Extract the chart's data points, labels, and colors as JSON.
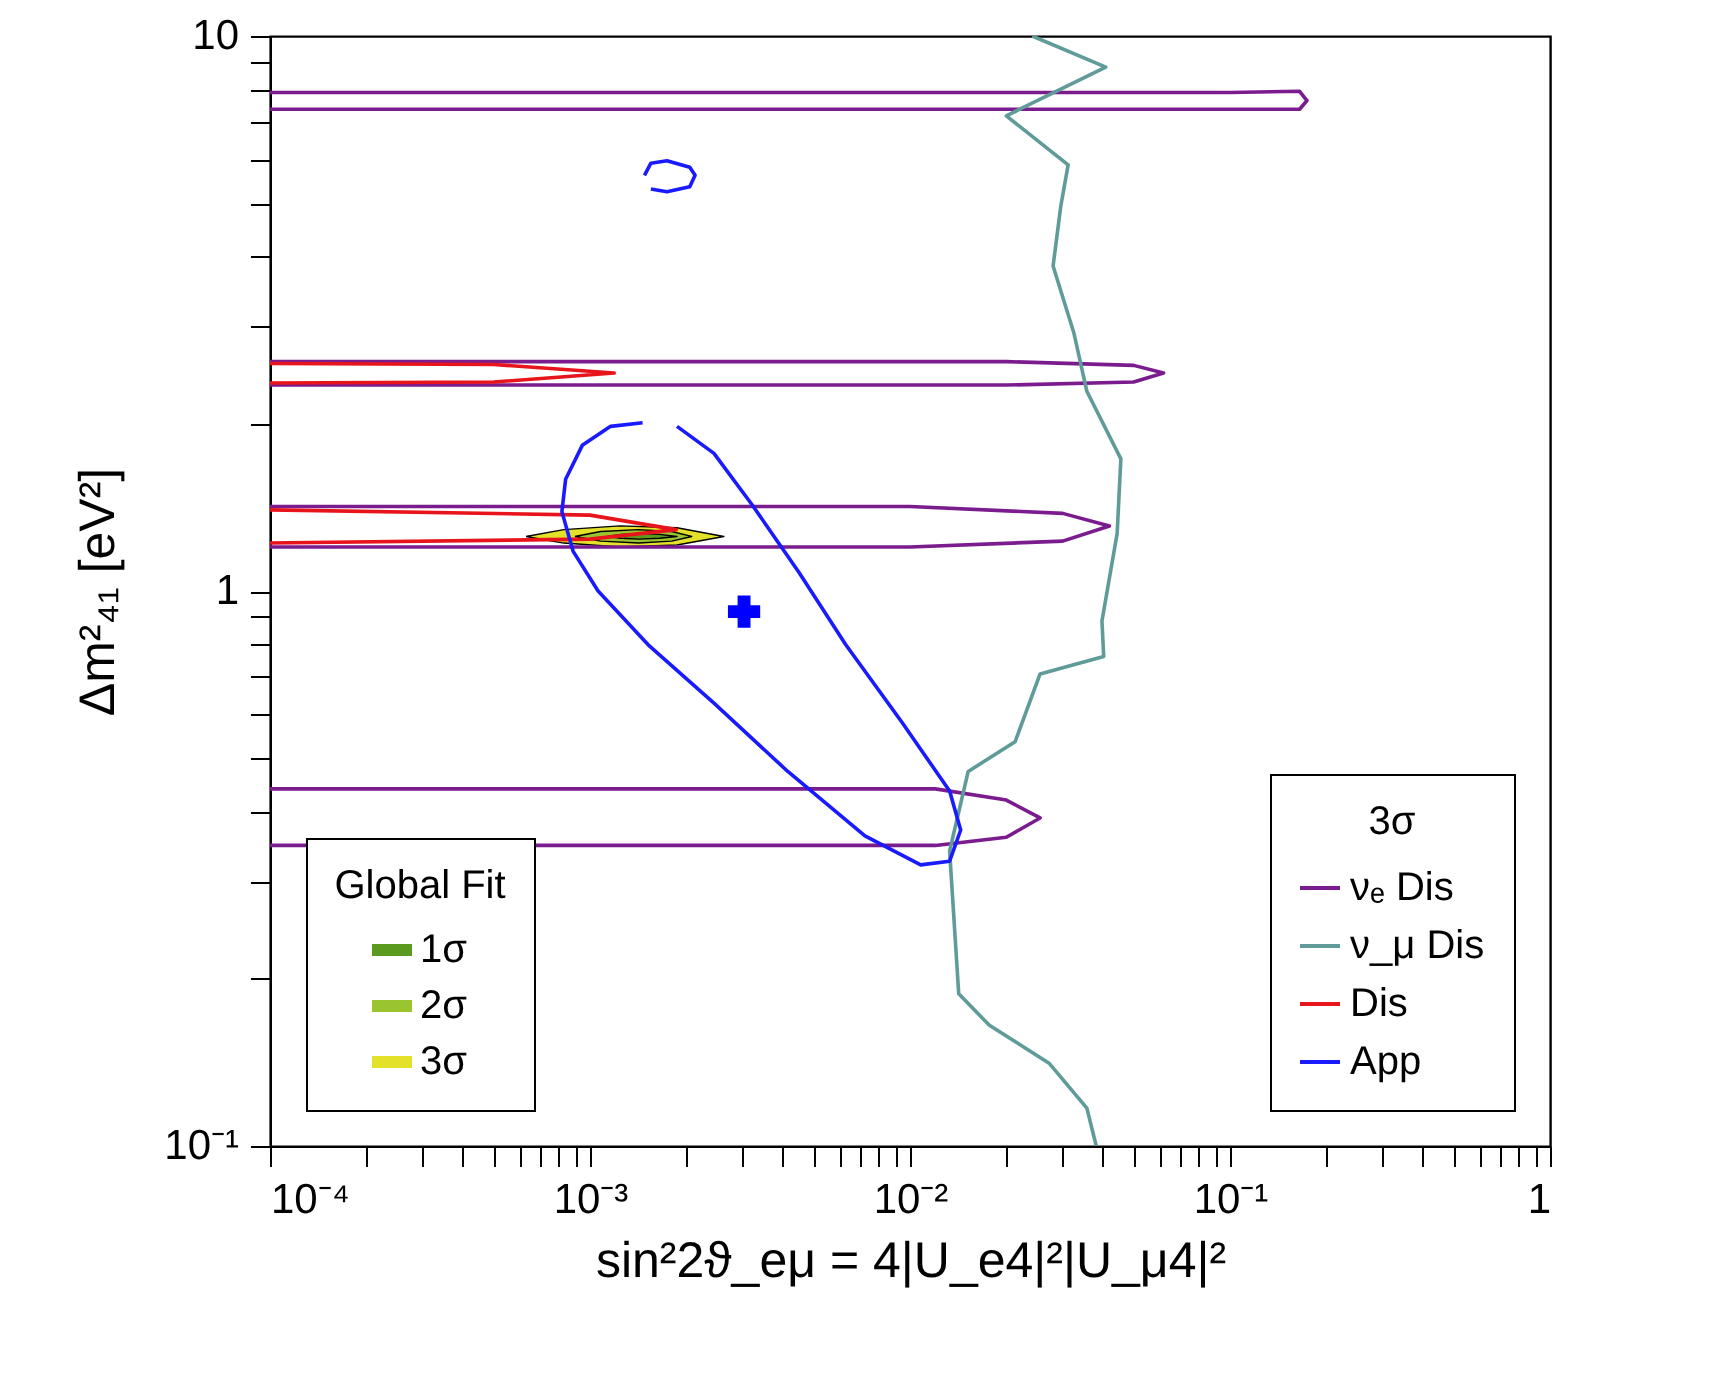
{
  "chart_data": {
    "type": "line",
    "xlabel": "sin²2ϑ_eμ = 4|U_e4|²|U_μ4|²",
    "ylabel": "Δm²₄₁  [eV²]",
    "log": "xy",
    "grid": false,
    "xlim": [
      0.0001,
      1
    ],
    "ylim": [
      0.1,
      10
    ],
    "xticks": [
      {
        "value": 0.0001,
        "label": "10⁻⁴"
      },
      {
        "value": 0.0002,
        "label": null
      },
      {
        "value": 0.0003,
        "label": null
      },
      {
        "value": 0.0004,
        "label": null
      },
      {
        "value": 0.0005,
        "label": null
      },
      {
        "value": 0.0006,
        "label": null
      },
      {
        "value": 0.0007,
        "label": null
      },
      {
        "value": 0.0008,
        "label": null
      },
      {
        "value": 0.0009,
        "label": null
      },
      {
        "value": 0.001,
        "label": "10⁻³"
      },
      {
        "value": 0.002,
        "label": null
      },
      {
        "value": 0.003,
        "label": null
      },
      {
        "value": 0.004,
        "label": null
      },
      {
        "value": 0.005,
        "label": null
      },
      {
        "value": 0.006,
        "label": null
      },
      {
        "value": 0.007,
        "label": null
      },
      {
        "value": 0.008,
        "label": null
      },
      {
        "value": 0.009,
        "label": null
      },
      {
        "value": 0.01,
        "label": "10⁻²"
      },
      {
        "value": 0.02,
        "label": null
      },
      {
        "value": 0.03,
        "label": null
      },
      {
        "value": 0.04,
        "label": null
      },
      {
        "value": 0.05,
        "label": null
      },
      {
        "value": 0.06,
        "label": null
      },
      {
        "value": 0.07,
        "label": null
      },
      {
        "value": 0.08,
        "label": null
      },
      {
        "value": 0.09,
        "label": null
      },
      {
        "value": 0.1,
        "label": "10⁻¹"
      },
      {
        "value": 0.2,
        "label": null
      },
      {
        "value": 0.3,
        "label": null
      },
      {
        "value": 0.4,
        "label": null
      },
      {
        "value": 0.5,
        "label": null
      },
      {
        "value": 0.6,
        "label": null
      },
      {
        "value": 0.7,
        "label": null
      },
      {
        "value": 0.8,
        "label": null
      },
      {
        "value": 0.9,
        "label": null
      },
      1
    ],
    "yticks": [
      {
        "value": 0.1,
        "label": "10⁻¹"
      },
      {
        "value": 0.2,
        "label": null
      },
      {
        "value": 0.3,
        "label": null
      },
      {
        "value": 0.4,
        "label": null
      },
      {
        "value": 0.5,
        "label": null
      },
      {
        "value": 0.6,
        "label": null
      },
      {
        "value": 0.7,
        "label": null
      },
      {
        "value": 0.8,
        "label": null
      },
      {
        "value": 0.9,
        "label": null
      },
      1,
      {
        "value": 2,
        "label": null
      },
      {
        "value": 3,
        "label": null
      },
      {
        "value": 4,
        "label": null
      },
      {
        "value": 5,
        "label": null
      },
      {
        "value": 6,
        "label": null
      },
      {
        "value": 7,
        "label": null
      },
      {
        "value": 8,
        "label": null
      },
      {
        "value": 9,
        "label": null
      },
      10
    ],
    "legend": [
      "bottom left",
      "bottom right"
    ],
    "legend_title": [
      "Global Fit",
      "3σ"
    ],
    "series": [
      {
        "name": "1σ",
        "type": "area",
        "color": "#5a9a1e",
        "x": [
          0.00113,
          0.00125,
          0.00142,
          0.00165,
          0.00187,
          0.00165,
          0.00142,
          0.00125,
          0.00113
        ],
        "values": [
          1.254,
          1.265,
          1.27,
          1.265,
          1.254,
          1.245,
          1.24,
          1.245,
          1.254
        ]
      },
      {
        "name": "2σ",
        "type": "area",
        "color": "#9ac52e",
        "x": [
          0.000897,
          0.00108,
          0.00142,
          0.0018,
          0.00208,
          0.0018,
          0.00142,
          0.00108,
          0.000897
        ],
        "values": [
          1.254,
          1.28,
          1.29,
          1.28,
          1.254,
          1.23,
          1.22,
          1.23,
          1.254
        ]
      },
      {
        "name": "3σ",
        "type": "area",
        "color": "#e3e12a",
        "x": [
          0.000631,
          0.000828,
          0.00124,
          0.00187,
          0.00262,
          0.00187,
          0.00124,
          0.000828,
          0.000631
        ],
        "values": [
          1.254,
          1.29,
          1.31,
          1.3,
          1.254,
          1.21,
          1.2,
          1.22,
          1.254
        ]
      },
      {
        "name": "νₑ Dis",
        "type": "line",
        "color": "#7b1c8e",
        "x": [
          0.0001,
          0.1,
          0.165,
          0.174,
          0.165,
          0.1,
          0.0001,
          null,
          0.0001,
          0.02,
          0.05,
          0.062,
          0.05,
          0.02,
          0.0001,
          null,
          0.0001,
          0.01,
          0.03,
          0.042,
          0.03,
          0.01,
          0.0001,
          null,
          0.0001,
          0.012,
          0.02,
          0.0255,
          0.02,
          0.012,
          0.0001
        ],
        "values": [
          7.91,
          7.91,
          7.95,
          7.65,
          7.38,
          7.38,
          7.38,
          null,
          2.59,
          2.59,
          2.55,
          2.47,
          2.38,
          2.35,
          2.35,
          null,
          1.42,
          1.42,
          1.38,
          1.31,
          1.23,
          1.2,
          1.2,
          null,
          0.44,
          0.44,
          0.42,
          0.39,
          0.36,
          0.348,
          0.348
        ]
      },
      {
        "name": "ν_μ Dis",
        "type": "line",
        "color": "#5f9b98",
        "x": [
          0.0241,
          0.0409,
          0.02,
          0.0312,
          0.0296,
          0.028,
          0.0325,
          0.0357,
          0.0456,
          0.0444,
          0.0398,
          0.0403,
          0.0255,
          0.0213,
          0.0152,
          0.0133,
          0.0142,
          0.0177,
          0.0272,
          0.0357,
          0.0382
        ],
        "values": [
          10,
          8.79,
          7.18,
          5.86,
          4.94,
          3.85,
          2.92,
          2.29,
          1.73,
          1.27,
          0.883,
          0.762,
          0.709,
          0.535,
          0.473,
          0.34,
          0.188,
          0.165,
          0.141,
          0.117,
          0.1
        ]
      },
      {
        "name": "Dis",
        "type": "line",
        "color": "#e8141c",
        "x": [
          0.0001,
          0.0005,
          0.00119,
          0.0005,
          0.0001,
          null,
          0.0001,
          0.001,
          0.00186,
          0.001,
          0.0001
        ],
        "values": [
          2.57,
          2.56,
          2.47,
          2.38,
          2.37,
          null,
          1.4,
          1.37,
          1.29,
          1.24,
          1.22
        ]
      },
      {
        "name": "App",
        "color": "#1a1aff",
        "x": [
          0.00146,
          0.00116,
          0.000946,
          0.000839,
          0.000817,
          0.000885,
          0.00106,
          0.00152,
          0.00244,
          0.00415,
          0.00723,
          0.0108,
          0.0133,
          0.0144,
          0.0133,
          0.00946,
          0.0063,
          0.0045,
          0.00321,
          0.00244,
          0.00187,
          null,
          0.00148,
          0.00155,
          0.00174,
          0.00205,
          0.00213,
          0.00205,
          0.00174,
          0.00155
        ],
        "values": [
          2.01,
          1.98,
          1.83,
          1.59,
          1.39,
          1.18,
          1.0,
          0.8,
          0.628,
          0.473,
          0.362,
          0.321,
          0.326,
          0.371,
          0.436,
          0.579,
          0.8,
          1.08,
          1.43,
          1.77,
          1.98,
          null,
          5.61,
          5.9,
          5.96,
          5.8,
          5.61,
          5.35,
          5.24,
          5.3
        ]
      },
      {
        "type": "scatter",
        "marker": "cross",
        "color": "#0000ff",
        "x": [
          0.00303
        ],
        "values": [
          0.918
        ]
      }
    ]
  }
}
